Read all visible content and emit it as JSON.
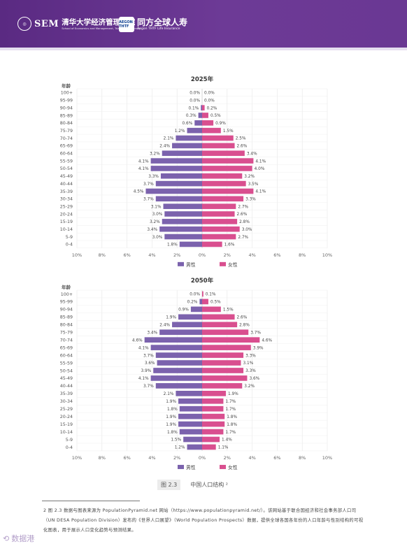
{
  "header": {
    "sem_mark": "SEM",
    "school_name": "清华大学经济管理学院",
    "school_name_en": "School of Economics and Management, Tsinghua University",
    "partner_badge": "AEGON THTF",
    "partner_name": "同方全球人寿",
    "partner_name_en": "Aegon THTF Life Insurance",
    "brand_color": "#5a2a82"
  },
  "caption": {
    "number": "图 2.3",
    "text": "中国人口结构 ²"
  },
  "footnote": {
    "text": "2 图 2.3 数据与图表来源为 PopulationPyramid.net 网站（https://www.populationpyramid.net/）。该网站基于联合国经济和社会事务部人口司（UN DESA Population Division）发布的《世界人口展望》（World Population Prospects）数据，提供全球各国各年份的人口年龄与性别结构的可视化图表，用于展示人口变化趋势与预测结果。"
  },
  "watermark": {
    "text": "数据港"
  },
  "chart_data": [
    {
      "type": "bar",
      "orientation": "horizontal-pyramid",
      "title": "2025年",
      "ylabel": "年龄",
      "xlim": [
        -10,
        10
      ],
      "x_ticks": [
        "10%",
        "8%",
        "6%",
        "4%",
        "2%",
        "0%",
        "2%",
        "4%",
        "6%",
        "8%",
        "10%"
      ],
      "grid": true,
      "legend_position": "bottom",
      "categories": [
        "100+",
        "95-99",
        "90-94",
        "85-89",
        "80-84",
        "75-79",
        "70-74",
        "65-69",
        "60-64",
        "55-59",
        "50-54",
        "45-49",
        "40-44",
        "35-39",
        "30-34",
        "25-29",
        "20-24",
        "15-19",
        "10-14",
        "5-9",
        "0-4"
      ],
      "series": [
        {
          "name": "男性",
          "color": "#7b62ad",
          "values": [
            0.0,
            0.0,
            0.1,
            0.3,
            0.6,
            1.2,
            2.1,
            2.4,
            3.2,
            4.1,
            4.1,
            3.3,
            3.7,
            4.5,
            3.7,
            3.1,
            3.0,
            3.2,
            3.4,
            3.0,
            1.8
          ]
        },
        {
          "name": "女性",
          "color": "#d94f8f",
          "values": [
            0.0,
            0.0,
            0.2,
            0.5,
            0.9,
            1.5,
            2.5,
            2.6,
            3.4,
            4.1,
            4.0,
            3.2,
            3.5,
            4.1,
            3.3,
            2.7,
            2.6,
            2.8,
            3.0,
            2.7,
            1.6
          ]
        }
      ]
    },
    {
      "type": "bar",
      "orientation": "horizontal-pyramid",
      "title": "2050年",
      "ylabel": "年龄",
      "xlim": [
        -10,
        10
      ],
      "x_ticks": [
        "10%",
        "8%",
        "6%",
        "4%",
        "2%",
        "0%",
        "2%",
        "4%",
        "6%",
        "8%",
        "10%"
      ],
      "grid": true,
      "legend_position": "bottom",
      "categories": [
        "100+",
        "95-99",
        "90-94",
        "85-89",
        "80-84",
        "75-79",
        "70-74",
        "65-69",
        "60-64",
        "55-59",
        "50-54",
        "45-49",
        "40-44",
        "35-39",
        "30-34",
        "25-29",
        "20-24",
        "15-19",
        "10-14",
        "5-9",
        "0-4"
      ],
      "series": [
        {
          "name": "男性",
          "color": "#7b62ad",
          "values": [
            0.0,
            0.2,
            0.9,
            1.9,
            2.4,
            3.4,
            4.6,
            4.1,
            3.7,
            3.6,
            3.9,
            4.1,
            3.7,
            2.1,
            1.9,
            1.8,
            1.9,
            1.9,
            1.8,
            1.5,
            1.2
          ]
        },
        {
          "name": "女性",
          "color": "#d94f8f",
          "values": [
            0.1,
            0.5,
            1.5,
            2.6,
            2.8,
            3.7,
            4.6,
            3.9,
            3.3,
            3.1,
            3.3,
            3.6,
            3.2,
            1.9,
            1.7,
            1.7,
            1.8,
            1.8,
            1.7,
            1.4,
            1.1
          ]
        }
      ]
    }
  ]
}
